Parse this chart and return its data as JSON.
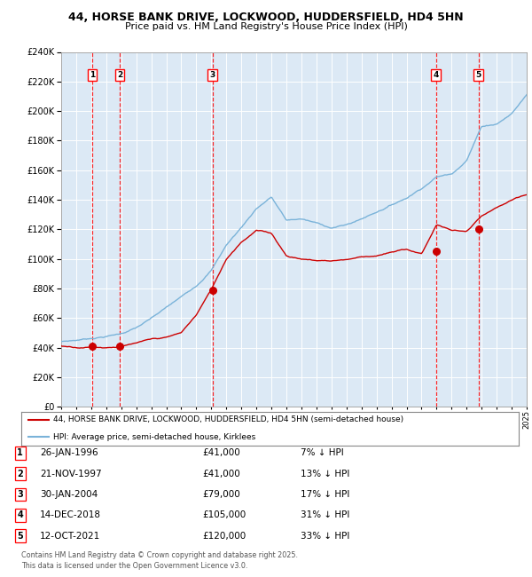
{
  "title_line1": "44, HORSE BANK DRIVE, LOCKWOOD, HUDDERSFIELD, HD4 5HN",
  "title_line2": "Price paid vs. HM Land Registry's House Price Index (HPI)",
  "bg_color": "#dce9f5",
  "grid_color": "#ffffff",
  "hpi_color": "#7ab3d9",
  "price_color": "#cc0000",
  "ylim": [
    0,
    240000
  ],
  "ytick_step": 20000,
  "x_start_year": 1994,
  "x_end_year": 2025,
  "sale_dates_decimal": [
    1996.07,
    1997.9,
    2004.08,
    2018.96,
    2021.79
  ],
  "sale_prices": [
    41000,
    41000,
    79000,
    105000,
    120000
  ],
  "sale_labels": [
    "1",
    "2",
    "3",
    "4",
    "5"
  ],
  "legend_line1": "44, HORSE BANK DRIVE, LOCKWOOD, HUDDERSFIELD, HD4 5HN (semi-detached house)",
  "legend_line2": "HPI: Average price, semi-detached house, Kirklees",
  "table_data": [
    [
      "1",
      "26-JAN-1996",
      "£41,000",
      "7% ↓ HPI"
    ],
    [
      "2",
      "21-NOV-1997",
      "£41,000",
      "13% ↓ HPI"
    ],
    [
      "3",
      "30-JAN-2004",
      "£79,000",
      "17% ↓ HPI"
    ],
    [
      "4",
      "14-DEC-2018",
      "£105,000",
      "31% ↓ HPI"
    ],
    [
      "5",
      "12-OCT-2021",
      "£120,000",
      "33% ↓ HPI"
    ]
  ],
  "footer": "Contains HM Land Registry data © Crown copyright and database right 2025.\nThis data is licensed under the Open Government Licence v3.0.",
  "hpi_key_years": [
    1994,
    1995,
    1996,
    1997,
    1998,
    1999,
    2000,
    2001,
    2002,
    2003,
    2004,
    2005,
    2006,
    2007,
    2008,
    2009,
    2010,
    2011,
    2012,
    2013,
    2014,
    2015,
    2016,
    2017,
    2018,
    2019,
    2020,
    2021,
    2022,
    2023,
    2024,
    2025
  ],
  "hpi_key_vals": [
    44000,
    45000,
    46500,
    48000,
    50000,
    54000,
    60000,
    67000,
    74000,
    82000,
    93000,
    110000,
    122000,
    135000,
    143000,
    127000,
    128000,
    125000,
    122000,
    124000,
    128000,
    133000,
    138000,
    143000,
    150000,
    158000,
    160000,
    170000,
    193000,
    195000,
    202000,
    215000
  ],
  "price_key_years": [
    1994,
    1995,
    1996,
    1997,
    1998,
    1999,
    2000,
    2001,
    2002,
    2003,
    2004,
    2005,
    2006,
    2007,
    2008,
    2009,
    2010,
    2011,
    2012,
    2013,
    2014,
    2015,
    2016,
    2017,
    2018,
    2019,
    2020,
    2021,
    2022,
    2023,
    2024,
    2025
  ],
  "price_key_vals": [
    41000,
    40500,
    41000,
    41000,
    42000,
    44000,
    46000,
    47000,
    50000,
    62000,
    79000,
    100000,
    112000,
    120000,
    118000,
    103000,
    101000,
    100000,
    100000,
    101000,
    103000,
    104000,
    106000,
    108000,
    105000,
    125000,
    121000,
    120000,
    130000,
    135000,
    140000,
    143000
  ]
}
